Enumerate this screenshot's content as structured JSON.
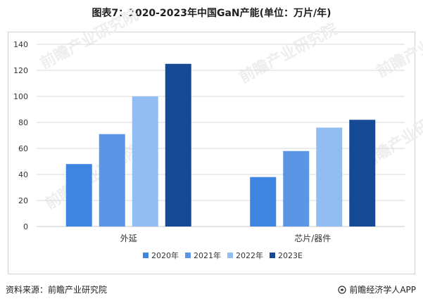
{
  "title": "图表7：2020-2023年中国GaN产能(单位：万片/年)",
  "chart_data": {
    "type": "bar",
    "categories": [
      "外延",
      "芯片/器件"
    ],
    "series": [
      {
        "name": "2020年",
        "values": [
          48,
          38
        ],
        "color": "#3d85e0"
      },
      {
        "name": "2021年",
        "values": [
          71,
          58
        ],
        "color": "#5b96e6"
      },
      {
        "name": "2022年",
        "values": [
          100,
          76
        ],
        "color": "#92bdf2"
      },
      {
        "name": "2023E",
        "values": [
          125,
          82
        ],
        "color": "#174a96"
      }
    ],
    "ylim": [
      0,
      140
    ],
    "yticks": [
      0,
      20,
      40,
      60,
      80,
      100,
      120,
      140
    ],
    "grid": true,
    "legend": "bottom"
  },
  "watermark": "前瞻产业研究院",
  "footer": {
    "source": "资料来源：前瞻产业研究院",
    "brand": "前瞻经济学人APP",
    "brand_icon": "qianzhan-logo-icon"
  }
}
